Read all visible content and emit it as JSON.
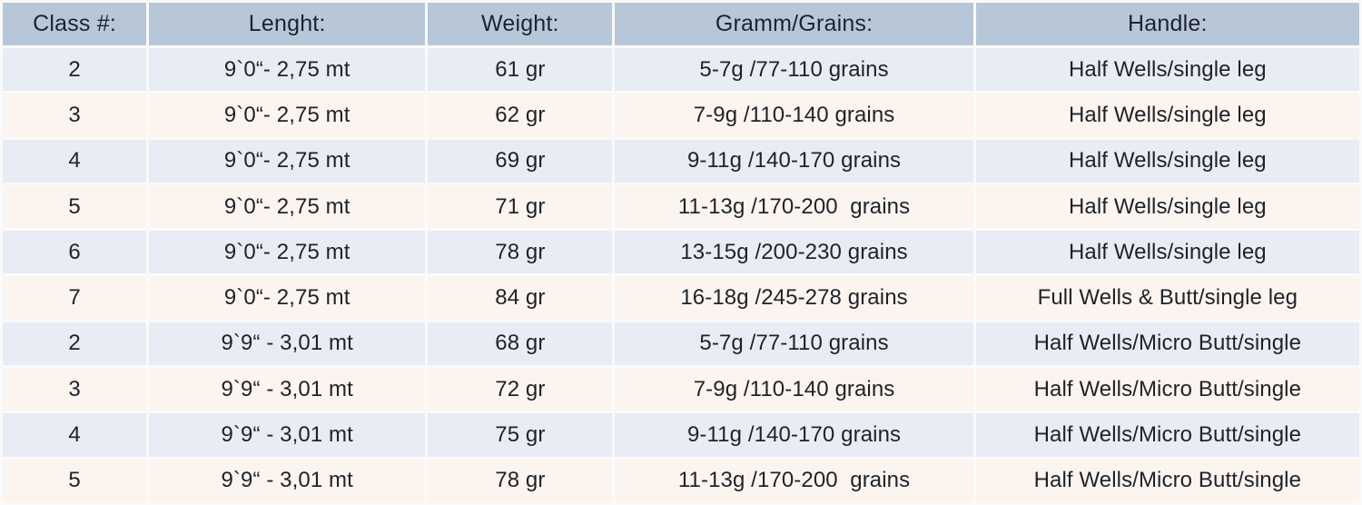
{
  "table": {
    "name": "fly-rod-specification-table",
    "columns": [
      {
        "key": "class",
        "label": "Class #:"
      },
      {
        "key": "length",
        "label": "Lenght:"
      },
      {
        "key": "weight",
        "label": "Weight:"
      },
      {
        "key": "grains",
        "label": "Gramm/Grains:"
      },
      {
        "key": "handle",
        "label": "Handle:"
      }
    ],
    "rows": [
      {
        "class": "2",
        "length": "9`0“- 2,75 mt",
        "weight": "61 gr",
        "grains": "5-7g /77-110 grains",
        "handle": "Half Wells/single leg"
      },
      {
        "class": "3",
        "length": "9`0“- 2,75 mt",
        "weight": "62 gr",
        "grains": "7-9g /110-140 grains",
        "handle": "Half Wells/single leg"
      },
      {
        "class": "4",
        "length": "9`0“- 2,75 mt",
        "weight": "69 gr",
        "grains": "9-11g /140-170 grains",
        "handle": "Half Wells/single leg"
      },
      {
        "class": "5",
        "length": "9`0“- 2,75 mt",
        "weight": "71 gr",
        "grains": "11-13g /170-200  grains",
        "handle": "Half Wells/single leg"
      },
      {
        "class": "6",
        "length": "9`0“- 2,75 mt",
        "weight": "78 gr",
        "grains": "13-15g /200-230 grains",
        "handle": "Half Wells/single leg"
      },
      {
        "class": "7",
        "length": "9`0“- 2,75 mt",
        "weight": "84 gr",
        "grains": "16-18g /245-278 grains",
        "handle": "Full Wells & Butt/single leg"
      },
      {
        "class": "2",
        "length": "9`9“ - 3,01 mt",
        "weight": "68 gr",
        "grains": "5-7g /77-110 grains",
        "handle": "Half Wells/Micro Butt/single"
      },
      {
        "class": "3",
        "length": "9`9“ - 3,01 mt",
        "weight": "72 gr",
        "grains": "7-9g /110-140 grains",
        "handle": "Half Wells/Micro Butt/single"
      },
      {
        "class": "4",
        "length": "9`9“ - 3,01 mt",
        "weight": "75 gr",
        "grains": "9-11g /140-170 grains",
        "handle": "Half Wells/Micro Butt/single"
      },
      {
        "class": "5",
        "length": "9`9“ - 3,01 mt",
        "weight": "78 gr",
        "grains": "11-13g /170-200  grains",
        "handle": "Half Wells/Micro Butt/single"
      }
    ],
    "colors": {
      "header_bg": "#b8c7d8",
      "header_text": "#1c2430",
      "body_text": "#1f2228",
      "row_blue": "#e8ecf4",
      "row_cream": "#fcf5ef",
      "page_bg": "#fbfafa"
    }
  }
}
